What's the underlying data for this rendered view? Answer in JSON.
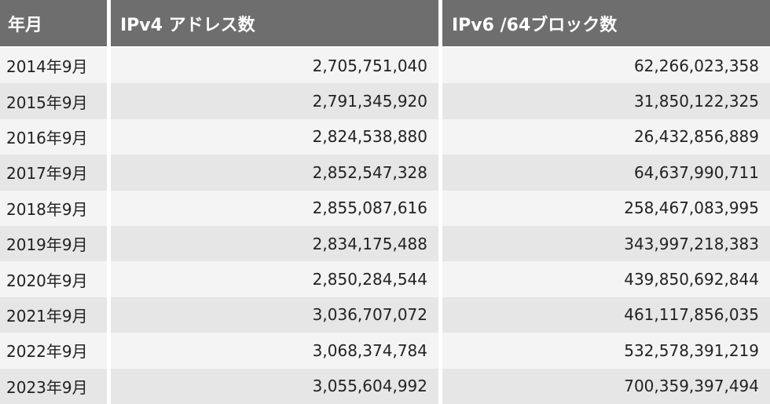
{
  "headers": {
    "col1": "年月",
    "col2": "IPv4 アドレス数",
    "col3": "IPv6 /64ブロック数"
  },
  "rows": [
    {
      "date": "2014年9月",
      "ipv4": "2,705,751,040",
      "ipv6": "62,266,023,358"
    },
    {
      "date": "2015年9月",
      "ipv4": "2,791,345,920",
      "ipv6": "31,850,122,325"
    },
    {
      "date": "2016年9月",
      "ipv4": "2,824,538,880",
      "ipv6": "26,432,856,889"
    },
    {
      "date": "2017年9月",
      "ipv4": "2,852,547,328",
      "ipv6": "64,637,990,711"
    },
    {
      "date": "2018年9月",
      "ipv4": "2,855,087,616",
      "ipv6": "258,467,083,995"
    },
    {
      "date": "2019年9月",
      "ipv4": "2,834,175,488",
      "ipv6": "343,997,218,383"
    },
    {
      "date": "2020年9月",
      "ipv4": "2,850,284,544",
      "ipv6": "439,850,692,844"
    },
    {
      "date": "2021年9月",
      "ipv4": "3,036,707,072",
      "ipv6": "461,117,856,035"
    },
    {
      "date": "2022年9月",
      "ipv4": "3,068,374,784",
      "ipv6": "532,578,391,219"
    },
    {
      "date": "2023年9月",
      "ipv4": "3,055,604,992",
      "ipv6": "700,359,397,494"
    }
  ]
}
